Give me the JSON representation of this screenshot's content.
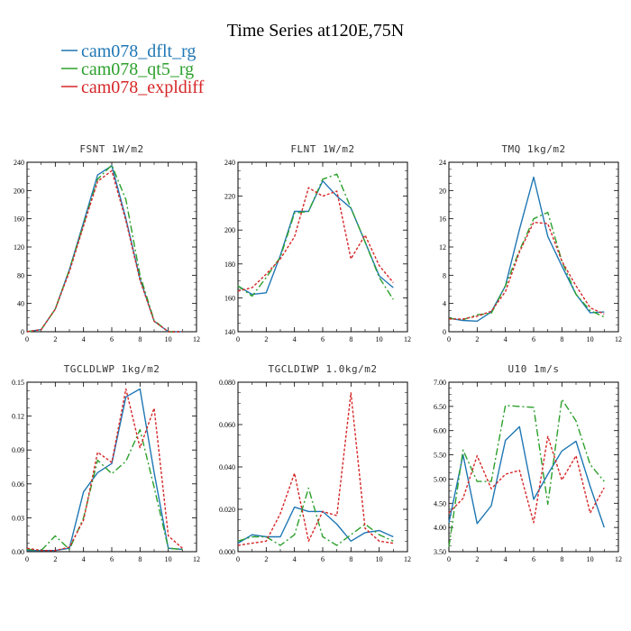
{
  "title": "Time Series at120E,75N",
  "legend": [
    {
      "name": "cam078_dflt_rg",
      "color": "#1f77b4",
      "dash": "solid"
    },
    {
      "name": "cam078_qt5_rg",
      "color": "#2ca02c",
      "dash": "dashdot"
    },
    {
      "name": "cam078_expldiff",
      "color": "#d62728",
      "dash": "dotted"
    }
  ],
  "chart_data": [
    {
      "type": "line",
      "title": "FSNT   1W/m2",
      "x": [
        0,
        1,
        2,
        3,
        4,
        5,
        6,
        7,
        8,
        9,
        10,
        11
      ],
      "xlim": [
        0,
        12
      ],
      "xticks": [
        "0",
        "2",
        "4",
        "6",
        "8",
        "10",
        "12"
      ],
      "ylim": [
        0,
        240
      ],
      "yticks": [
        "0",
        "40",
        "80",
        "120",
        "160",
        "200",
        "240"
      ],
      "series": [
        {
          "name": "cam078_dflt_rg",
          "values": [
            0,
            3,
            32,
            88,
            155,
            222,
            235,
            160,
            75,
            15,
            0,
            0
          ]
        },
        {
          "name": "cam078_qt5_rg",
          "values": [
            0,
            3,
            32,
            88,
            152,
            216,
            236,
            187,
            80,
            16,
            0,
            0
          ]
        },
        {
          "name": "cam078_expldiff",
          "values": [
            0,
            3,
            32,
            85,
            150,
            213,
            228,
            157,
            73,
            15,
            0,
            0
          ]
        }
      ]
    },
    {
      "type": "line",
      "title": "FLNT   1W/m2",
      "x": [
        0,
        1,
        2,
        3,
        4,
        5,
        6,
        7,
        8,
        9,
        10,
        11
      ],
      "xlim": [
        0,
        12
      ],
      "xticks": [
        "0",
        "2",
        "4",
        "6",
        "8",
        "10",
        "12"
      ],
      "ylim": [
        140,
        240
      ],
      "yticks": [
        "140",
        "160",
        "180",
        "200",
        "220",
        "240"
      ],
      "series": [
        {
          "name": "cam078_dflt_rg",
          "values": [
            167,
            162,
            163,
            185,
            211,
            211,
            229,
            220,
            213,
            193,
            173,
            166
          ]
        },
        {
          "name": "cam078_qt5_rg",
          "values": [
            167,
            161,
            172,
            184,
            210,
            211,
            230,
            233,
            213,
            193,
            172,
            159
          ]
        },
        {
          "name": "cam078_expldiff",
          "values": [
            164,
            166,
            174,
            183,
            196,
            225,
            220,
            223,
            183,
            197,
            179,
            169
          ]
        }
      ]
    },
    {
      "type": "line",
      "title": "TMQ   1kg/m2",
      "x": [
        0,
        1,
        2,
        3,
        4,
        5,
        6,
        7,
        8,
        9,
        10,
        11
      ],
      "xlim": [
        0,
        12
      ],
      "xticks": [
        "0",
        "2",
        "4",
        "6",
        "8",
        "10",
        "12"
      ],
      "ylim": [
        0,
        24
      ],
      "yticks": [
        "0",
        "4",
        "8",
        "12",
        "16",
        "20",
        "24"
      ],
      "series": [
        {
          "name": "cam078_dflt_rg",
          "values": [
            1.9,
            1.6,
            1.5,
            2.8,
            6.5,
            14.5,
            21.9,
            13.5,
            9.3,
            5.3,
            2.7,
            2.8
          ]
        },
        {
          "name": "cam078_qt5_rg",
          "values": [
            1.9,
            1.7,
            2.4,
            2.6,
            6.5,
            11.5,
            16,
            16.9,
            10,
            5.3,
            3,
            2.1
          ]
        },
        {
          "name": "cam078_expldiff",
          "values": [
            1.8,
            1.8,
            2.2,
            2.9,
            5.7,
            11.3,
            15.5,
            15.3,
            10,
            6.5,
            3.4,
            2.5
          ]
        }
      ]
    },
    {
      "type": "line",
      "title": "TGCLDLWP   1kg/m2",
      "x": [
        0,
        1,
        2,
        3,
        4,
        5,
        6,
        7,
        8,
        9,
        10,
        11
      ],
      "xlim": [
        0,
        12
      ],
      "xticks": [
        "0",
        "2",
        "4",
        "6",
        "8",
        "10",
        "12"
      ],
      "ylim": [
        0,
        0.15
      ],
      "yticks": [
        "0.00",
        "0.03",
        "0.06",
        "0.09",
        "0.12",
        "0.15"
      ],
      "series": [
        {
          "name": "cam078_dflt_rg",
          "values": [
            0.001,
            0.001,
            0.001,
            0.003,
            0.053,
            0.07,
            0.078,
            0.137,
            0.144,
            0.07,
            0.003,
            0.002
          ]
        },
        {
          "name": "cam078_qt5_rg",
          "values": [
            0.002,
            0.001,
            0.014,
            0.002,
            0.03,
            0.081,
            0.069,
            0.08,
            0.108,
            0.057,
            0.003,
            0.002
          ]
        },
        {
          "name": "cam078_expldiff",
          "values": [
            0.003,
            0.001,
            0.001,
            0.004,
            0.028,
            0.088,
            0.079,
            0.144,
            0.092,
            0.127,
            0.014,
            0.003
          ]
        }
      ]
    },
    {
      "type": "line",
      "title": "TGCLDIWP   1.0kg/m2",
      "x": [
        0,
        1,
        2,
        3,
        4,
        5,
        6,
        7,
        8,
        9,
        10,
        11
      ],
      "xlim": [
        0,
        12
      ],
      "xticks": [
        "0",
        "2",
        "4",
        "6",
        "8",
        "10",
        "12"
      ],
      "ylim": [
        0,
        0.08
      ],
      "yticks": [
        "0.000",
        "0.020",
        "0.040",
        "0.060",
        "0.080"
      ],
      "series": [
        {
          "name": "cam078_dflt_rg",
          "values": [
            0.004,
            0.008,
            0.007,
            0.007,
            0.021,
            0.019,
            0.019,
            0.013,
            0.005,
            0.009,
            0.01,
            0.007
          ]
        },
        {
          "name": "cam078_qt5_rg",
          "values": [
            0.005,
            0.007,
            0.007,
            0.003,
            0.008,
            0.03,
            0.007,
            0.003,
            0.008,
            0.013,
            0.008,
            0.005
          ]
        },
        {
          "name": "cam078_expldiff",
          "values": [
            0.003,
            0.004,
            0.005,
            0.018,
            0.037,
            0.005,
            0.019,
            0.017,
            0.075,
            0.011,
            0.005,
            0.004
          ]
        }
      ]
    },
    {
      "type": "line",
      "title": "U10   1m/s",
      "x": [
        0,
        1,
        2,
        3,
        4,
        5,
        6,
        7,
        8,
        9,
        10,
        11
      ],
      "xlim": [
        0,
        12
      ],
      "xticks": [
        "0",
        "2",
        "4",
        "6",
        "8",
        "10",
        "12"
      ],
      "ylim": [
        3.5,
        7.0
      ],
      "yticks": [
        "3.50",
        "4.00",
        "4.50",
        "5.00",
        "5.50",
        "6.00",
        "6.50",
        "7.00"
      ],
      "series": [
        {
          "name": "cam078_dflt_rg",
          "values": [
            4.1,
            5.5,
            4.08,
            4.45,
            5.8,
            6.08,
            4.58,
            5.1,
            5.58,
            5.78,
            4.85,
            4.0
          ]
        },
        {
          "name": "cam078_qt5_rg",
          "values": [
            3.6,
            5.6,
            4.95,
            4.95,
            6.52,
            6.5,
            6.48,
            4.48,
            6.65,
            6.2,
            5.3,
            4.95
          ]
        },
        {
          "name": "cam078_expldiff",
          "values": [
            4.3,
            4.6,
            5.48,
            4.8,
            5.1,
            5.18,
            4.1,
            5.88,
            4.98,
            5.48,
            4.3,
            4.82
          ]
        }
      ]
    }
  ]
}
